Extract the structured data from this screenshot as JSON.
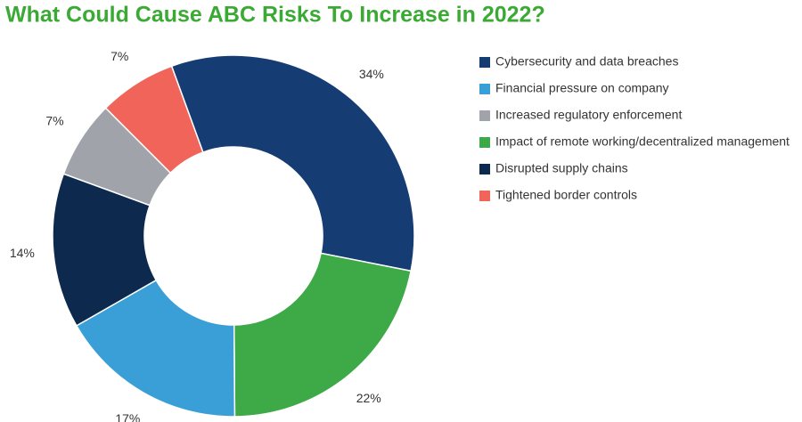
{
  "chart_data": {
    "type": "donut",
    "title": "What Could Cause ABC Risks To Increase in 2022?",
    "categories": [
      "Cybersecurity and data breaches",
      "Financial pressure on company",
      "Increased regulatory enforcement",
      "Impact of remote working/decentralized management",
      "Disrupted supply chains",
      "Tightened border controls"
    ],
    "values": [
      34,
      17,
      7,
      22,
      14,
      7
    ],
    "value_labels": [
      "34%",
      "17%",
      "7%",
      "22%",
      "14%",
      "7%"
    ],
    "colors": [
      "#163d73",
      "#3a9fd6",
      "#a0a4aa",
      "#3daa47",
      "#0d2a4e",
      "#f0645a"
    ],
    "slice_order": [
      0,
      3,
      1,
      4,
      2,
      5
    ],
    "legend": "right"
  }
}
